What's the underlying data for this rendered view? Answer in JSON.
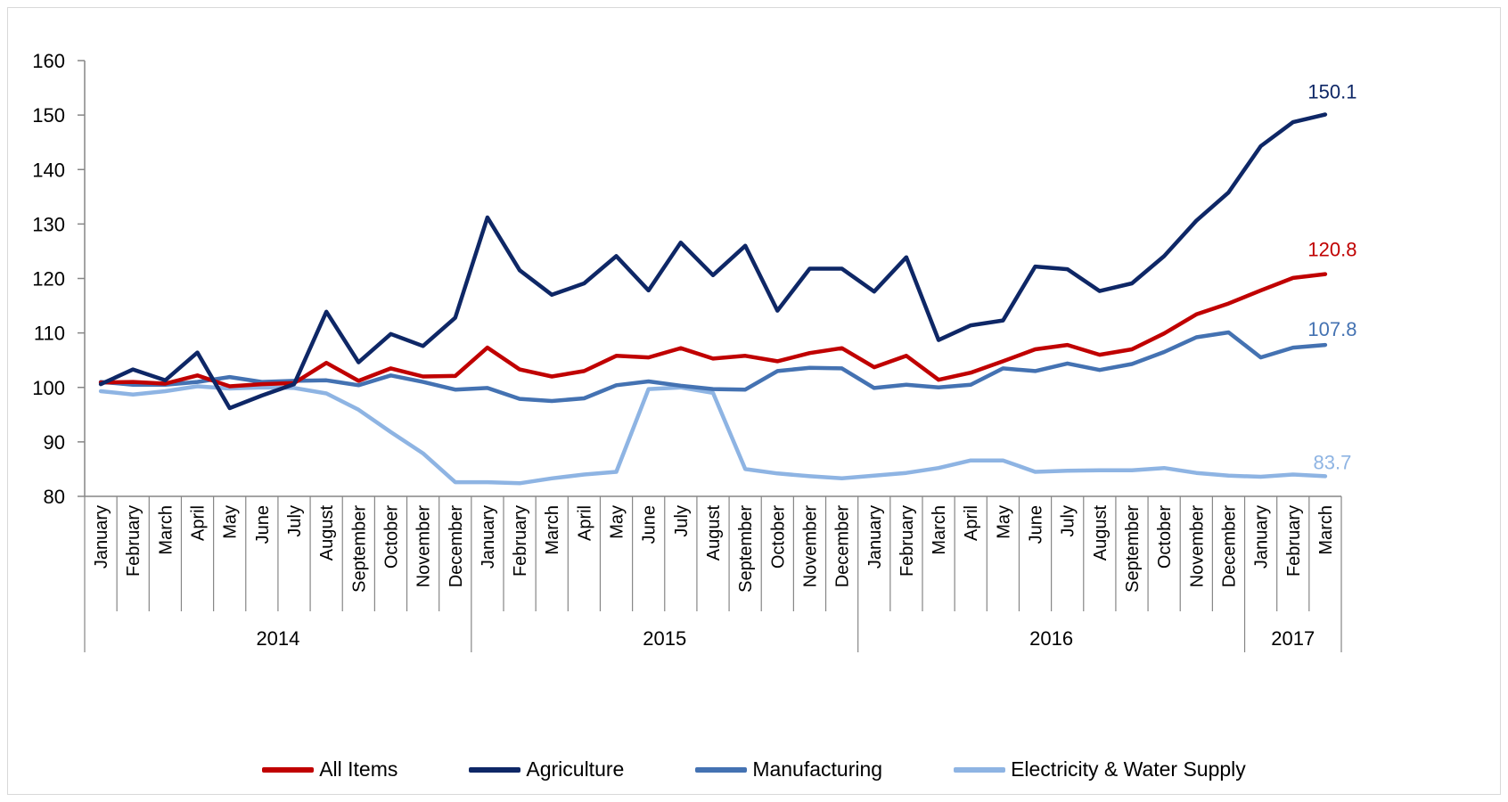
{
  "chart_data": {
    "type": "line",
    "title": "",
    "xlabel": "",
    "ylabel": "",
    "ylim": [
      80,
      160
    ],
    "yticks": [
      80,
      90,
      100,
      110,
      120,
      130,
      140,
      150,
      160
    ],
    "grid": false,
    "legend_position": "bottom",
    "x": [
      "January",
      "February",
      "March",
      "April",
      "May",
      "June",
      "July",
      "August",
      "September",
      "October",
      "November",
      "December",
      "January",
      "February",
      "March",
      "April",
      "May",
      "June",
      "July",
      "August",
      "September",
      "October",
      "November",
      "December",
      "January",
      "February",
      "March",
      "April",
      "May",
      "June",
      "July",
      "August",
      "September",
      "October",
      "November",
      "December",
      "January",
      "February",
      "March"
    ],
    "year_groups": [
      {
        "label": "2014",
        "count": 12
      },
      {
        "label": "2015",
        "count": 12
      },
      {
        "label": "2016",
        "count": 12
      },
      {
        "label": "2017",
        "count": 3
      }
    ],
    "series": [
      {
        "name": "All Items",
        "color": "#C00000",
        "end_label": "120.8",
        "values": [
          100.9,
          101.0,
          100.7,
          102.2,
          100.2,
          100.6,
          100.8,
          104.5,
          101.2,
          103.5,
          102.0,
          102.1,
          107.3,
          103.3,
          102.0,
          103.0,
          105.8,
          105.5,
          107.2,
          105.3,
          105.8,
          104.8,
          106.3,
          107.2,
          103.7,
          105.8,
          101.4,
          102.7,
          104.8,
          107.0,
          107.8,
          106.0,
          107.0,
          109.9,
          113.4,
          115.4,
          117.8,
          120.1,
          120.8
        ]
      },
      {
        "name": "Agriculture",
        "color": "#0E2766",
        "end_label": "150.1",
        "values": [
          100.6,
          103.3,
          101.3,
          106.4,
          96.2,
          98.5,
          100.6,
          113.9,
          104.6,
          109.8,
          107.6,
          112.8,
          131.2,
          121.5,
          117.0,
          119.1,
          124.1,
          117.8,
          126.6,
          120.6,
          126.0,
          114.1,
          121.8,
          121.8,
          117.6,
          123.9,
          108.7,
          111.4,
          112.3,
          122.2,
          121.7,
          117.7,
          119.1,
          124.1,
          130.6,
          135.8,
          144.3,
          148.7,
          150.1
        ]
      },
      {
        "name": "Manufacturing",
        "color": "#4472B2",
        "end_label": "107.8",
        "values": [
          101.0,
          100.5,
          100.5,
          101.0,
          101.9,
          101.0,
          101.2,
          101.3,
          100.4,
          102.2,
          101.0,
          99.6,
          99.9,
          97.9,
          97.5,
          98.0,
          100.4,
          101.1,
          100.3,
          99.7,
          99.6,
          103.0,
          103.6,
          103.5,
          99.9,
          100.5,
          100.0,
          100.5,
          103.5,
          103.0,
          104.4,
          103.2,
          104.3,
          106.5,
          109.2,
          110.1,
          105.5,
          107.3,
          107.8
        ]
      },
      {
        "name": "Electricity & Water Supply",
        "color": "#8EB4E3",
        "end_label": "83.7",
        "values": [
          99.3,
          98.7,
          99.3,
          100.2,
          99.8,
          100.0,
          99.9,
          98.9,
          95.9,
          91.8,
          87.9,
          82.6,
          82.6,
          82.4,
          83.3,
          84.0,
          84.5,
          99.7,
          100.0,
          99.0,
          85.0,
          84.2,
          83.7,
          83.3,
          83.8,
          84.3,
          85.2,
          86.6,
          86.6,
          84.5,
          84.7,
          84.8,
          84.8,
          85.2,
          84.3,
          83.8,
          83.6,
          84.0,
          83.7
        ]
      }
    ]
  }
}
